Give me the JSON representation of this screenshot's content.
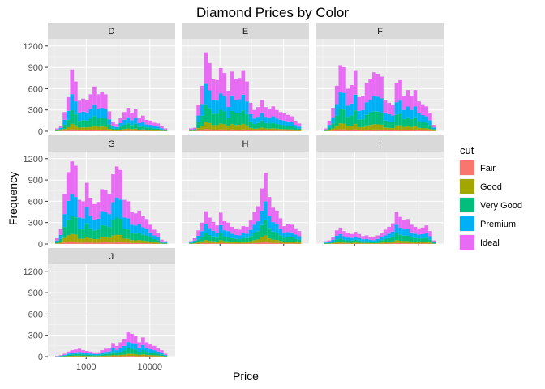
{
  "chart_data": {
    "type": "bar",
    "subtype": "stacked-histogram-faceted",
    "title": "Diamond Prices by Color",
    "xlabel": "Price",
    "ylabel": "Frequency",
    "x_scale": "log10",
    "xlim": [
      250,
      25000
    ],
    "ylim": [
      0,
      1300
    ],
    "x_ticks": [
      1000,
      10000
    ],
    "x_tick_labels": [
      "1000",
      "10000"
    ],
    "y_ticks": [
      0,
      300,
      600,
      900,
      1200
    ],
    "y_tick_labels": [
      "0",
      "300",
      "600",
      "900",
      "1200"
    ],
    "grid": true,
    "legend": {
      "title": "cut",
      "placement": "right",
      "entries": [
        {
          "label": "Fair",
          "color": "#F8766D"
        },
        {
          "label": "Good",
          "color": "#A3A500"
        },
        {
          "label": "Very Good",
          "color": "#00BF7D"
        },
        {
          "label": "Premium",
          "color": "#00B0F6"
        },
        {
          "label": "Ideal",
          "color": "#E76BF3"
        }
      ]
    },
    "bins": {
      "min_price": 326,
      "max_price": 18823,
      "count": 30
    },
    "facets": [
      {
        "label": "D",
        "totals": [
          40,
          80,
          270,
          480,
          870,
          700,
          430,
          460,
          440,
          520,
          630,
          520,
          550,
          520,
          280,
          130,
          100,
          190,
          270,
          330,
          260,
          310,
          190,
          220,
          160,
          150,
          120,
          110,
          70,
          40
        ]
      },
      {
        "label": "E",
        "totals": [
          40,
          50,
          370,
          640,
          1110,
          960,
          730,
          720,
          890,
          820,
          570,
          840,
          740,
          750,
          860,
          700,
          400,
          300,
          340,
          440,
          340,
          320,
          350,
          300,
          270,
          250,
          230,
          210,
          150,
          110
        ]
      },
      {
        "label": "F",
        "totals": [
          40,
          150,
          330,
          640,
          930,
          900,
          600,
          650,
          860,
          480,
          500,
          680,
          740,
          830,
          810,
          770,
          440,
          400,
          370,
          680,
          720,
          500,
          580,
          500,
          580,
          420,
          380,
          350,
          260,
          90
        ]
      },
      {
        "label": "G",
        "totals": [
          80,
          210,
          700,
          1010,
          1160,
          1100,
          620,
          600,
          860,
          650,
          560,
          590,
          770,
          760,
          700,
          980,
          1090,
          1040,
          620,
          600,
          450,
          430,
          470,
          390,
          350,
          270,
          200,
          160,
          60,
          40
        ]
      },
      {
        "label": "H",
        "totals": [
          40,
          80,
          190,
          300,
          460,
          370,
          310,
          260,
          440,
          320,
          300,
          240,
          210,
          200,
          250,
          240,
          330,
          450,
          530,
          780,
          1000,
          660,
          510,
          470,
          360,
          250,
          280,
          270,
          220,
          180
        ]
      },
      {
        "label": "I",
        "totals": [
          40,
          50,
          100,
          190,
          230,
          180,
          150,
          140,
          170,
          140,
          110,
          120,
          100,
          90,
          120,
          160,
          200,
          240,
          290,
          450,
          380,
          340,
          350,
          270,
          240,
          220,
          230,
          260,
          180,
          50
        ]
      },
      {
        "label": "J",
        "totals": [
          10,
          20,
          40,
          70,
          90,
          100,
          110,
          90,
          80,
          70,
          60,
          60,
          90,
          110,
          120,
          190,
          150,
          200,
          250,
          340,
          320,
          290,
          200,
          270,
          200,
          170,
          150,
          120,
          90,
          40
        ]
      }
    ],
    "cut_mix_note": ""
  }
}
